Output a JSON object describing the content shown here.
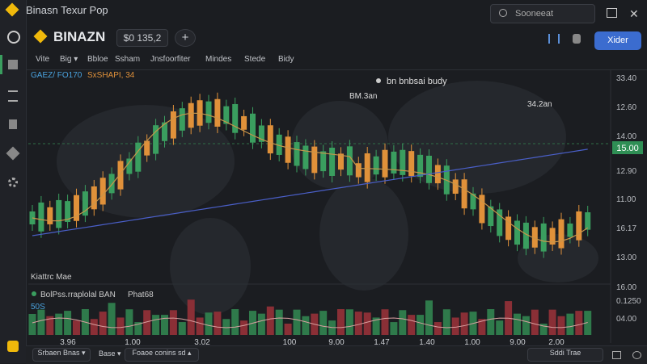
{
  "window": {
    "title": "Binasn Texur Pop",
    "search": "Sooneeat"
  },
  "header": {
    "logo": "BINAZN",
    "price": "$0 135,2",
    "add": "+",
    "button": "Xider"
  },
  "tabs": [
    "Vite",
    "Big ▾",
    "Bbloe",
    "Ssham",
    "Jnsfoorfiter",
    "Mindes",
    "Stede",
    "Bidy"
  ],
  "indicators": {
    "pair": "GAEZ/ FO170",
    "sma": "SxSHAPI, 34"
  },
  "annotations": {
    "top": "bn bnbsai budy",
    "left": "BM.3an",
    "right": "34.2an"
  },
  "price_axis": [
    "33.40",
    "12.60",
    "14.00",
    "12.90",
    "11.00",
    "16.17",
    "13.00",
    "16.00",
    "0.1250",
    "04.00"
  ],
  "current_price": "15.00",
  "volume_panel": {
    "title": "Kiattrc Mae",
    "legend1": "BolPss.rraplolal BAN",
    "legend2": "Phat68",
    "legend3": "50S"
  },
  "time_axis": [
    "3.96",
    "1.00",
    "3.02",
    "100",
    "9.00",
    "1.47",
    "1.40",
    "1.00",
    "9.00",
    "2.00"
  ],
  "footer": {
    "left": "Srbaen Bnas ▾",
    "mid": "Base ▾",
    "center": "Foaoe conins sd ▴",
    "right": "Sddi Trae"
  }
}
